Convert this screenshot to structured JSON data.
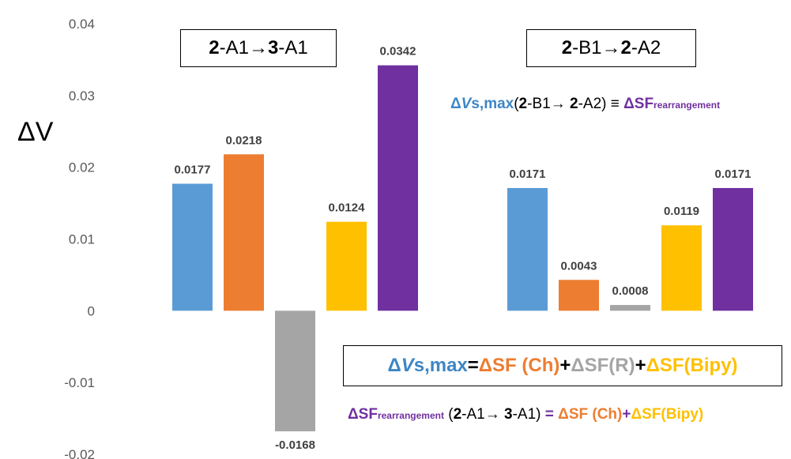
{
  "chart_data": {
    "type": "bar",
    "ylabel": "ΔV",
    "ylim": [
      -0.02,
      0.04
    ],
    "yticks": [
      "0.04",
      "0.03",
      "0.02",
      "0.01",
      "0",
      "-0.01",
      "-0.02"
    ],
    "grid": false,
    "groups": [
      {
        "title": {
          "bold1": "2",
          "text1": "-A1→ ",
          "bold2": "3",
          "text2": "-A1"
        },
        "bars": [
          {
            "value": 0.0177,
            "label": "0.0177",
            "color": "#5b9bd5"
          },
          {
            "value": 0.0218,
            "label": "0.0218",
            "color": "#ed7d31"
          },
          {
            "value": -0.0168,
            "label": "-0.0168",
            "color": "#a5a5a5"
          },
          {
            "value": 0.0124,
            "label": "0.0124",
            "color": "#ffc000"
          },
          {
            "value": 0.0342,
            "label": "0.0342",
            "color": "#7030a0"
          }
        ]
      },
      {
        "title": {
          "bold1": "2",
          "text1": "-B1→ ",
          "bold2": "2",
          "text2": "-A2"
        },
        "bars": [
          {
            "value": 0.0171,
            "label": "0.0171",
            "color": "#5b9bd5"
          },
          {
            "value": 0.0043,
            "label": "0.0043",
            "color": "#ed7d31"
          },
          {
            "value": 0.0008,
            "label": "0.0008",
            "color": "#a5a5a5"
          },
          {
            "value": 0.0119,
            "label": "0.0119",
            "color": "#ffc000"
          },
          {
            "value": 0.0171,
            "label": "0.0171",
            "color": "#7030a0"
          }
        ]
      }
    ]
  },
  "annotations": {
    "eq1": {
      "delta_v": "Δ",
      "v": "V",
      "smax": "s,max",
      "paren_open": "(",
      "b2a": "2",
      "mid_a": "-B1→ ",
      "b2b": "2",
      "mid_b": "-A2) ≡ ",
      "sf": "ΔSF",
      "sub": "rearrangement"
    },
    "eq2": {
      "lhs_delta": "Δ",
      "lhs_v": "V",
      "lhs_rest": "s,max",
      "equals": " = ",
      "term1": "ΔSF (Ch)",
      "plus1": "+ ",
      "term2": "ΔSF(R)",
      "plus2": "+ ",
      "term3": "ΔSF(Bipy)"
    },
    "eq3": {
      "sf": "ΔSF",
      "sub": "rearrangement",
      "open": " (",
      "b1": "2",
      "mid1": "-A1→ ",
      "b2": "3",
      "mid2": "-A1)",
      "equals": " = ",
      "term1": "ΔSF (Ch)",
      "plus": "+",
      "term2": "ΔSF(Bipy)"
    }
  }
}
